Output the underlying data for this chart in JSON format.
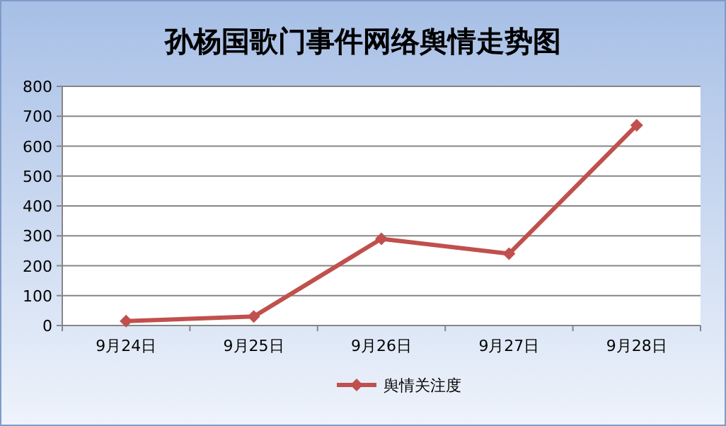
{
  "chart_data": {
    "type": "line",
    "title": "孙杨国歌门事件网络舆情走势图",
    "categories": [
      "9月24日",
      "9月25日",
      "9月26日",
      "9月27日",
      "9月28日"
    ],
    "series": [
      {
        "name": "舆情关注度",
        "color": "#c0504d",
        "values": [
          15,
          30,
          290,
          240,
          670
        ]
      }
    ],
    "ylim": [
      0,
      800
    ],
    "yticks": [
      0,
      100,
      200,
      300,
      400,
      500,
      600,
      700,
      800
    ],
    "grid": "y",
    "legend": "bottom",
    "marker": "diamond",
    "line_style": "solid"
  }
}
